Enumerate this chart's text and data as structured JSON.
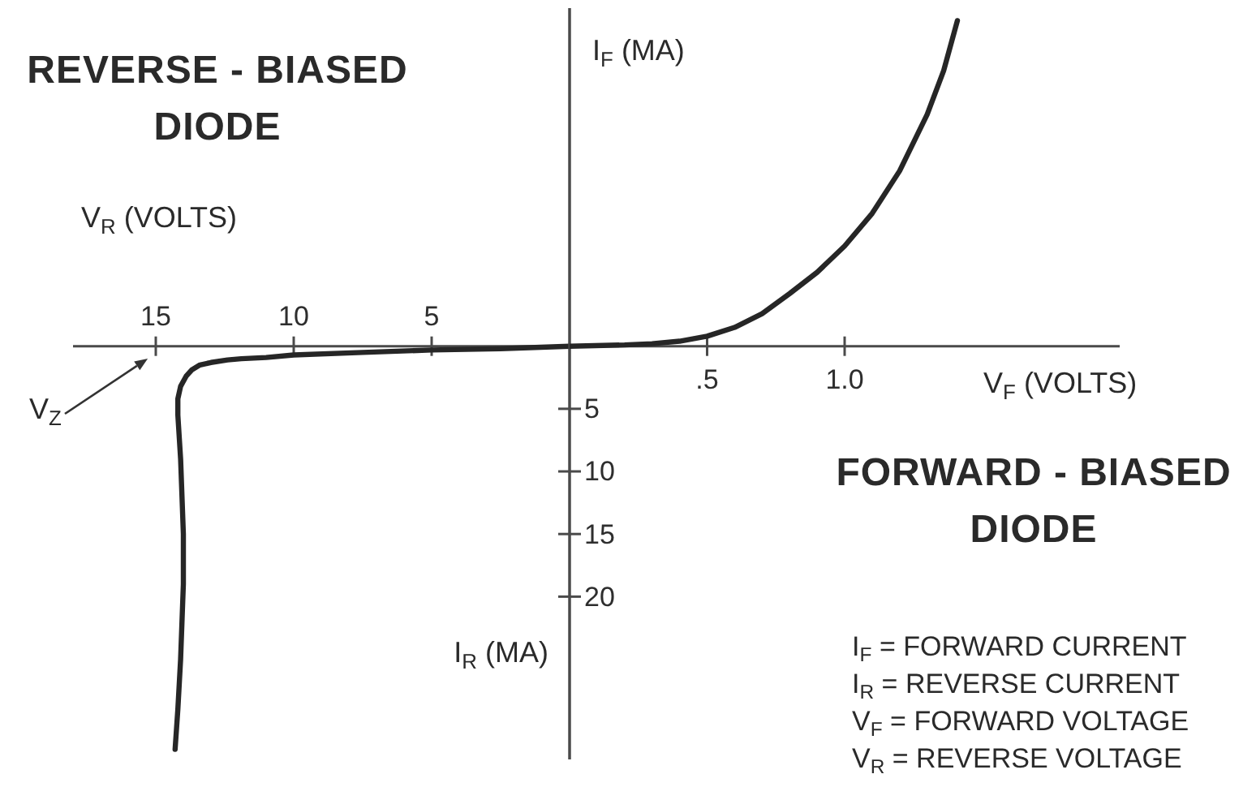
{
  "chart_data": [
    {
      "type": "line",
      "title": "REVERSE - BIASED DIODE",
      "annotations": [
        "V$_{R}$ (VOLTS)",
        "I$_{R}$ (MA)",
        "V$_{Z}$"
      ],
      "x": [
        14.3,
        14.2,
        14.1,
        14.0,
        14.0,
        14.1,
        14.2,
        14.2,
        14.1,
        13.9,
        13.7,
        13.4,
        13.0,
        12.4,
        11.9,
        11.0,
        10,
        7.5,
        5,
        2.5,
        0
      ],
      "values": [
        -32.2,
        -29,
        -25,
        -19,
        -15,
        -9,
        -5.5,
        -4.2,
        -3.2,
        -2.4,
        -1.9,
        -1.5,
        -1.3,
        -1.1,
        -1.0,
        -0.9,
        -0.7,
        -0.5,
        -0.3,
        -0.2,
        0
      ],
      "color": "#262626",
      "xlim": [
        18,
        0
      ],
      "ylim": [
        -33,
        27
      ],
      "xticks": [
        15,
        10,
        5
      ],
      "tick_labels": "x"
    },
    {
      "type": "line",
      "title": "FORWARD - BIASED DIODE",
      "ylabel": "I$_{F}$ (MA)",
      "annotations": [
        "V$_{F}$ (VOLTS)",
        "I$_{F}$ = FORWARD CURRENT",
        "I$_{R}$ = REVERSE CURRENT",
        "V$_{F}$ = FORWARD VOLTAGE",
        "V$_{R}$ = REVERSE VOLTAGE"
      ],
      "x": [
        0,
        0.2,
        0.3,
        0.4,
        0.5,
        0.6,
        0.7,
        0.8,
        0.9,
        1.0,
        1.1,
        1.2,
        1.3,
        1.36,
        1.41
      ],
      "values": [
        0,
        0.1,
        0.2,
        0.4,
        0.8,
        1.5,
        2.6,
        4.2,
        5.9,
        8.0,
        10.6,
        14.0,
        18.5,
        22.0,
        26.0
      ],
      "color": "#262626",
      "xlim": [
        0,
        2.0
      ],
      "ylim": [
        -33,
        27
      ],
      "xticks": [
        {
          "value": 0.5,
          "label": ".5"
        },
        {
          "value": 1,
          "label": "1.0"
        }
      ],
      "yticks": [
        {
          "value": -5,
          "label": "5"
        },
        {
          "value": -10,
          "label": "10"
        },
        {
          "value": -15,
          "label": "15"
        },
        {
          "value": -20,
          "label": "20"
        }
      ]
    }
  ]
}
